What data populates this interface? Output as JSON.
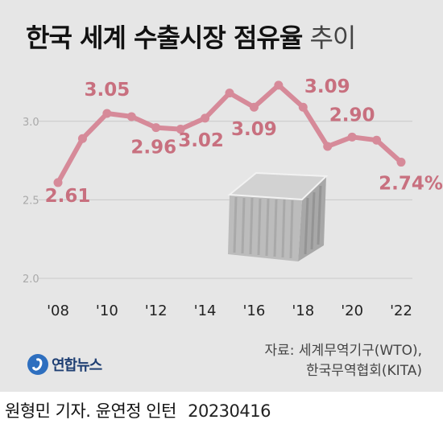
{
  "header": {
    "title_main": "한국 세계 수출시장 점유율",
    "title_sub": "추이"
  },
  "source": {
    "line1": "자료: 세계무역기구(WTO),",
    "line2": "한국무역협회(KITA)"
  },
  "logo": {
    "text": "연합뉴스",
    "icon": "yonhap-logo-icon"
  },
  "credit": {
    "name": "원형민 기자. 윤연정 인턴",
    "date": "20230416"
  },
  "colors": {
    "line": "#d68a99",
    "label": "#c8707f",
    "grid": "#c9c9c9",
    "axis_text": "#222222",
    "ytick_text": "#a9a9a9",
    "background": "#e6e6e6"
  },
  "chart_data": {
    "type": "line",
    "title": "한국 세계 수출시장 점유율 추이",
    "xlabel": "",
    "ylabel": "",
    "ylim": [
      2.0,
      3.25
    ],
    "xlim": [
      2008,
      2022
    ],
    "yticks": [
      "2.0",
      "2.5",
      "3.0"
    ],
    "xticks": [
      "'08",
      "'10",
      "'12",
      "'14",
      "'16",
      "'18",
      "'20",
      "'22"
    ],
    "x": [
      2008,
      2009,
      2010,
      2011,
      2012,
      2013,
      2014,
      2015,
      2016,
      2017,
      2018,
      2019,
      2020,
      2021,
      2022
    ],
    "series": [
      {
        "values": [
          2.61,
          2.89,
          3.05,
          3.03,
          2.96,
          2.95,
          3.02,
          3.18,
          3.09,
          3.23,
          3.09,
          2.84,
          2.9,
          2.88,
          2.74
        ]
      }
    ],
    "annotations": [
      {
        "year": 2008,
        "label": "2.61"
      },
      {
        "year": 2010,
        "label": "3.05"
      },
      {
        "year": 2012,
        "label": "2.96"
      },
      {
        "year": 2014,
        "label": "3.02"
      },
      {
        "year": 2016,
        "label": "3.09"
      },
      {
        "year": 2018,
        "label": "3.09"
      },
      {
        "year": 2020,
        "label": "2.90"
      },
      {
        "year": 2022,
        "label": "2.74%"
      }
    ],
    "grid": true,
    "illustration": "shipping-container-icon"
  }
}
